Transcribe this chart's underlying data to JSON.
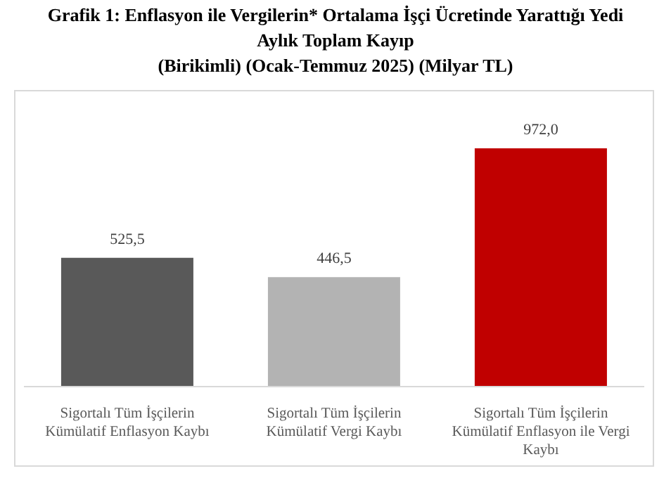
{
  "chart_data": {
    "type": "bar",
    "title": "Grafik 1: Enflasyon ile Vergilerin* Ortalama İşçi Ücretinde Yarattığı Yedi Aylık Toplam Kayıp",
    "subtitle": "(Birikimli) (Ocak-Temmuz 2025) (Milyar TL)",
    "categories": [
      "Sigortalı Tüm İşçilerin Kümülatif Enflasyon Kaybı",
      "Sigortalı Tüm İşçilerin Kümülatif Vergi Kaybı",
      "Sigortalı Tüm İşçilerin Kümülatif Enflasyon ile Vergi Kaybı"
    ],
    "values": [
      525.5,
      446.5,
      972.0
    ],
    "value_labels": [
      "525,5",
      "446,5",
      "972,0"
    ],
    "colors": [
      "#595959",
      "#b3b3b3",
      "#c00000"
    ]
  }
}
